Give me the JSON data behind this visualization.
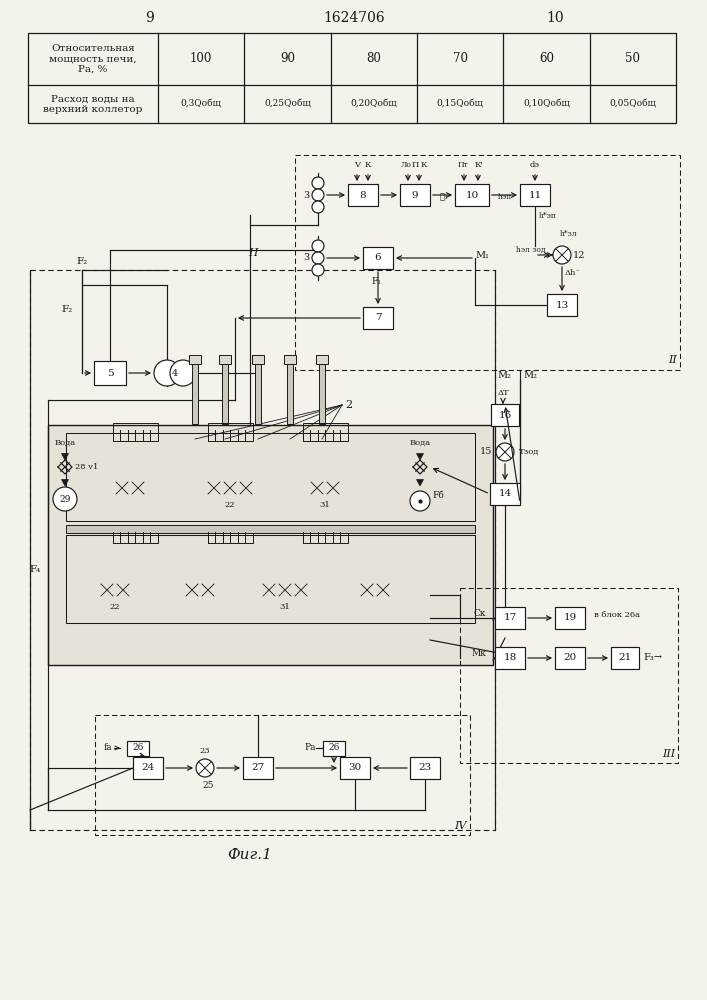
{
  "bg_color": "#f5f2ec",
  "line_color": "#1a1a1a",
  "page_left": "9",
  "page_center": "1624706",
  "page_right": "10",
  "table_row1": "Относительная\nмощность печи,\nРа, %",
  "table_row2": "Расход воды на\nверхний коллетор",
  "table_cols": [
    "100",
    "90",
    "80",
    "70",
    "60",
    "50"
  ],
  "table_vals": [
    "0,3Qобщ",
    "0,25Qобщ",
    "0,20Qобщ",
    "0,15Qобщ",
    "0,10Qобщ",
    "0,05Qобщ"
  ],
  "fig_caption": "Фиг.1"
}
